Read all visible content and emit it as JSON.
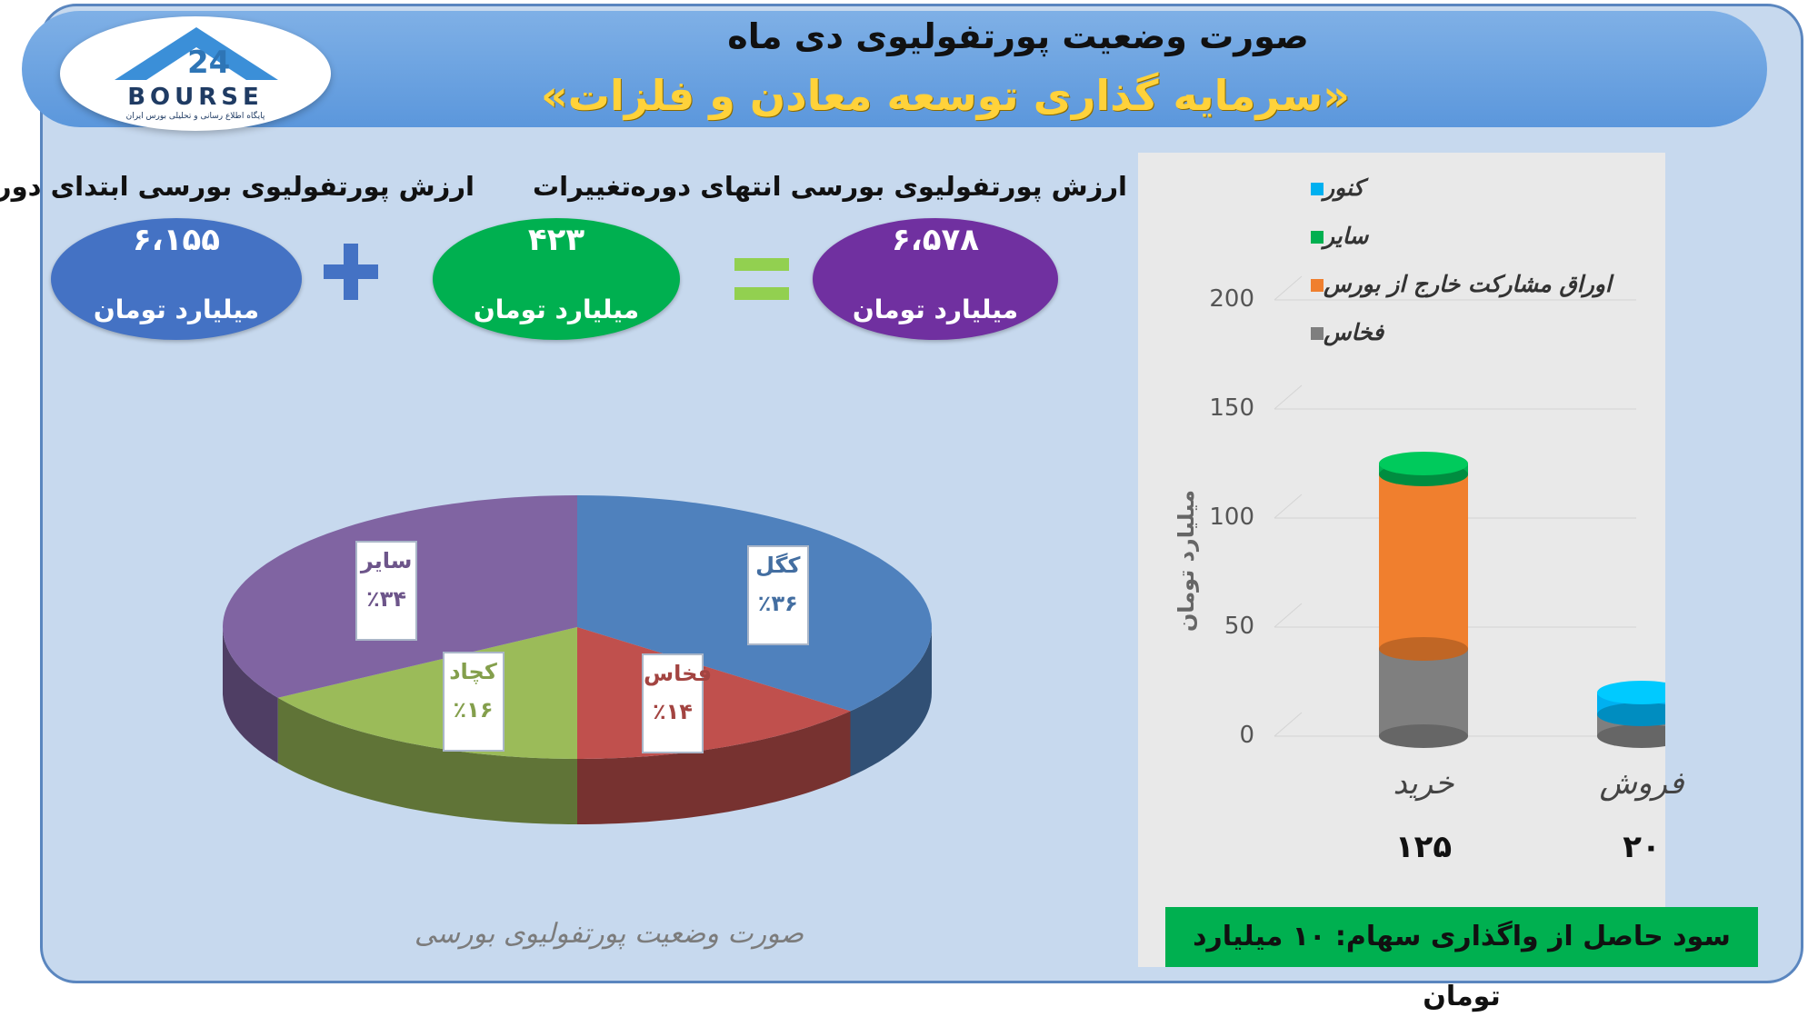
{
  "header": {
    "title": "صورت وضعیت پورتفولیوی دی ماه",
    "subtitle": "«سرمایه گذاری توسعه معادن و فلزات»"
  },
  "logo": {
    "text": "BOURSE",
    "tagline": "پایگاه اطلاع رسانی و تحلیلی بورس ایران"
  },
  "summary": {
    "start": {
      "label": "ارزش پورتفولیوی بورسی ابتدای دوره",
      "value": "۶،۱۵۵",
      "unit": "میلیارد تومان",
      "color": "#4472c4"
    },
    "change": {
      "label": "تغییرات",
      "value": "۴۲۳",
      "unit": "میلیارد تومان",
      "color": "#00b050"
    },
    "end": {
      "label": "ارزش پورتفولیوی بورسی انتهای دوره",
      "value": "۶،۵۷۸",
      "unit": "میلیارد تومان",
      "color": "#7030a0"
    },
    "plus_sign": "+",
    "equals_sign": "=",
    "plus_color": "#4472c4",
    "equals_color": "#92d050"
  },
  "chart_data": [
    {
      "type": "pie",
      "title": "صورت وضعیت پورتفولیوی بورسی",
      "slices": [
        {
          "name": "کگل",
          "value": 36,
          "label": "٪۳۶",
          "color": "#4f81bd"
        },
        {
          "name": "فخاس",
          "value": 14,
          "label": "٪۱۴",
          "color": "#c0504d"
        },
        {
          "name": "کچاد",
          "value": 16,
          "label": "٪۱۶",
          "color": "#9bbb59"
        },
        {
          "name": "سایر",
          "value": 34,
          "label": "٪۳۴",
          "color": "#8064a2"
        }
      ]
    },
    {
      "type": "bar",
      "stacked": true,
      "ylabel": "میلیارد تومان",
      "ylim": [
        0,
        200
      ],
      "yticks": [
        0,
        50,
        100,
        150,
        200
      ],
      "categories": [
        "خرید",
        "فروش"
      ],
      "category_totals": [
        "۱۲۵",
        "۲۰"
      ],
      "legend_position": "top",
      "series": [
        {
          "name": "فخاس",
          "color": "#7f7f7f",
          "values": [
            40,
            10
          ]
        },
        {
          "name": "اوراق مشارکت خارج از بورس",
          "color": "#f07f2e",
          "values": [
            80,
            0
          ]
        },
        {
          "name": "سایر",
          "color": "#00b050",
          "values": [
            5,
            0
          ]
        },
        {
          "name": "کنور",
          "color": "#00b0f0",
          "values": [
            0,
            10
          ]
        }
      ]
    }
  ],
  "profit": "سود حاصل از واگذاری سهام: ۱۰ میلیارد تومان"
}
